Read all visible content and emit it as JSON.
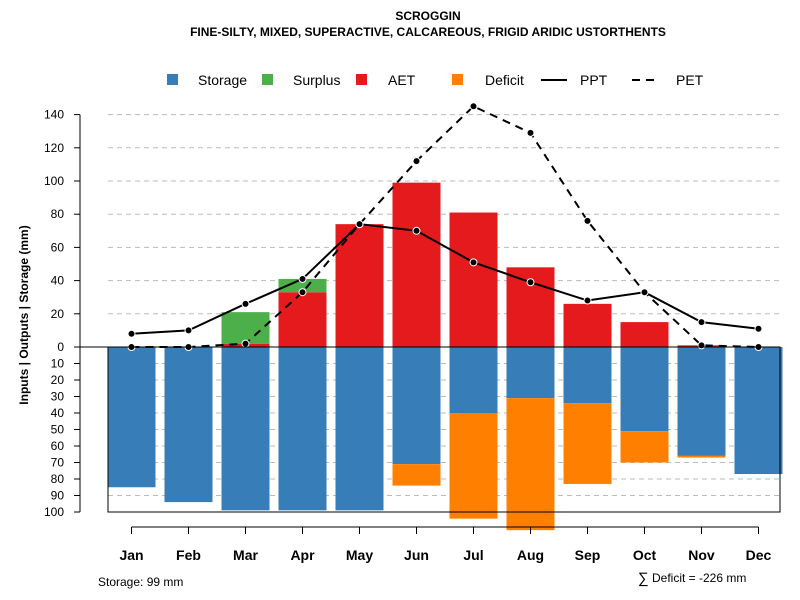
{
  "chart_data": {
    "type": "bar",
    "title": "SCROGGIN",
    "subtitle": "FINE-SILTY, MIXED, SUPERACTIVE, CALCAREOUS, FRIGID ARIDIC USTORTHENTS",
    "ylabel": "Inputs | Outputs | Storage    (mm)",
    "categories": [
      "Jan",
      "Feb",
      "Mar",
      "Apr",
      "May",
      "Jun",
      "Jul",
      "Aug",
      "Sep",
      "Oct",
      "Nov",
      "Dec"
    ],
    "upper_axis": {
      "range": [
        0,
        150
      ],
      "ticks": [
        "0",
        "20",
        "40",
        "60",
        "80",
        "100",
        "120",
        "140"
      ]
    },
    "lower_axis": {
      "range": [
        0,
        100
      ],
      "ticks": [
        "0",
        "10",
        "20",
        "30",
        "40",
        "50",
        "60",
        "70",
        "80",
        "90",
        "100"
      ]
    },
    "series": [
      {
        "name": "Storage",
        "color": "#377EB8",
        "position": "below",
        "values": [
          85,
          94,
          99,
          99,
          99,
          71,
          40,
          31,
          34,
          51,
          66,
          77
        ]
      },
      {
        "name": "Surplus",
        "color": "#4DAF4A",
        "position": "above-stacked",
        "values": [
          0,
          0,
          19,
          8,
          0,
          0,
          0,
          0,
          0,
          0,
          0,
          0
        ]
      },
      {
        "name": "AET",
        "color": "#E41A1C",
        "position": "above",
        "values": [
          0,
          0,
          2,
          33,
          74,
          99,
          81,
          48,
          26,
          15,
          1,
          0
        ]
      },
      {
        "name": "Deficit",
        "color": "#FF7F00",
        "position": "below-stacked",
        "values": [
          0,
          0,
          0,
          0,
          0,
          13,
          64,
          80,
          49,
          19,
          1,
          0
        ]
      },
      {
        "name": "PPT",
        "type": "line",
        "style": "solid",
        "values": [
          8,
          10,
          26,
          41,
          74,
          70,
          51,
          39,
          28,
          33,
          15,
          11
        ]
      },
      {
        "name": "PET",
        "type": "line",
        "style": "dashed",
        "values": [
          0,
          0,
          2,
          33,
          74,
          112,
          145,
          129,
          76,
          33,
          1,
          0
        ]
      }
    ],
    "legend": [
      "Storage",
      "Surplus",
      "AET",
      "Deficit",
      "PPT",
      "PET"
    ],
    "legend_position": "top",
    "grid": true
  },
  "footer": {
    "storage_text": "Storage: 99 mm",
    "deficit_symbol": "∑",
    "deficit_text": "Deficit = -226 mm"
  }
}
